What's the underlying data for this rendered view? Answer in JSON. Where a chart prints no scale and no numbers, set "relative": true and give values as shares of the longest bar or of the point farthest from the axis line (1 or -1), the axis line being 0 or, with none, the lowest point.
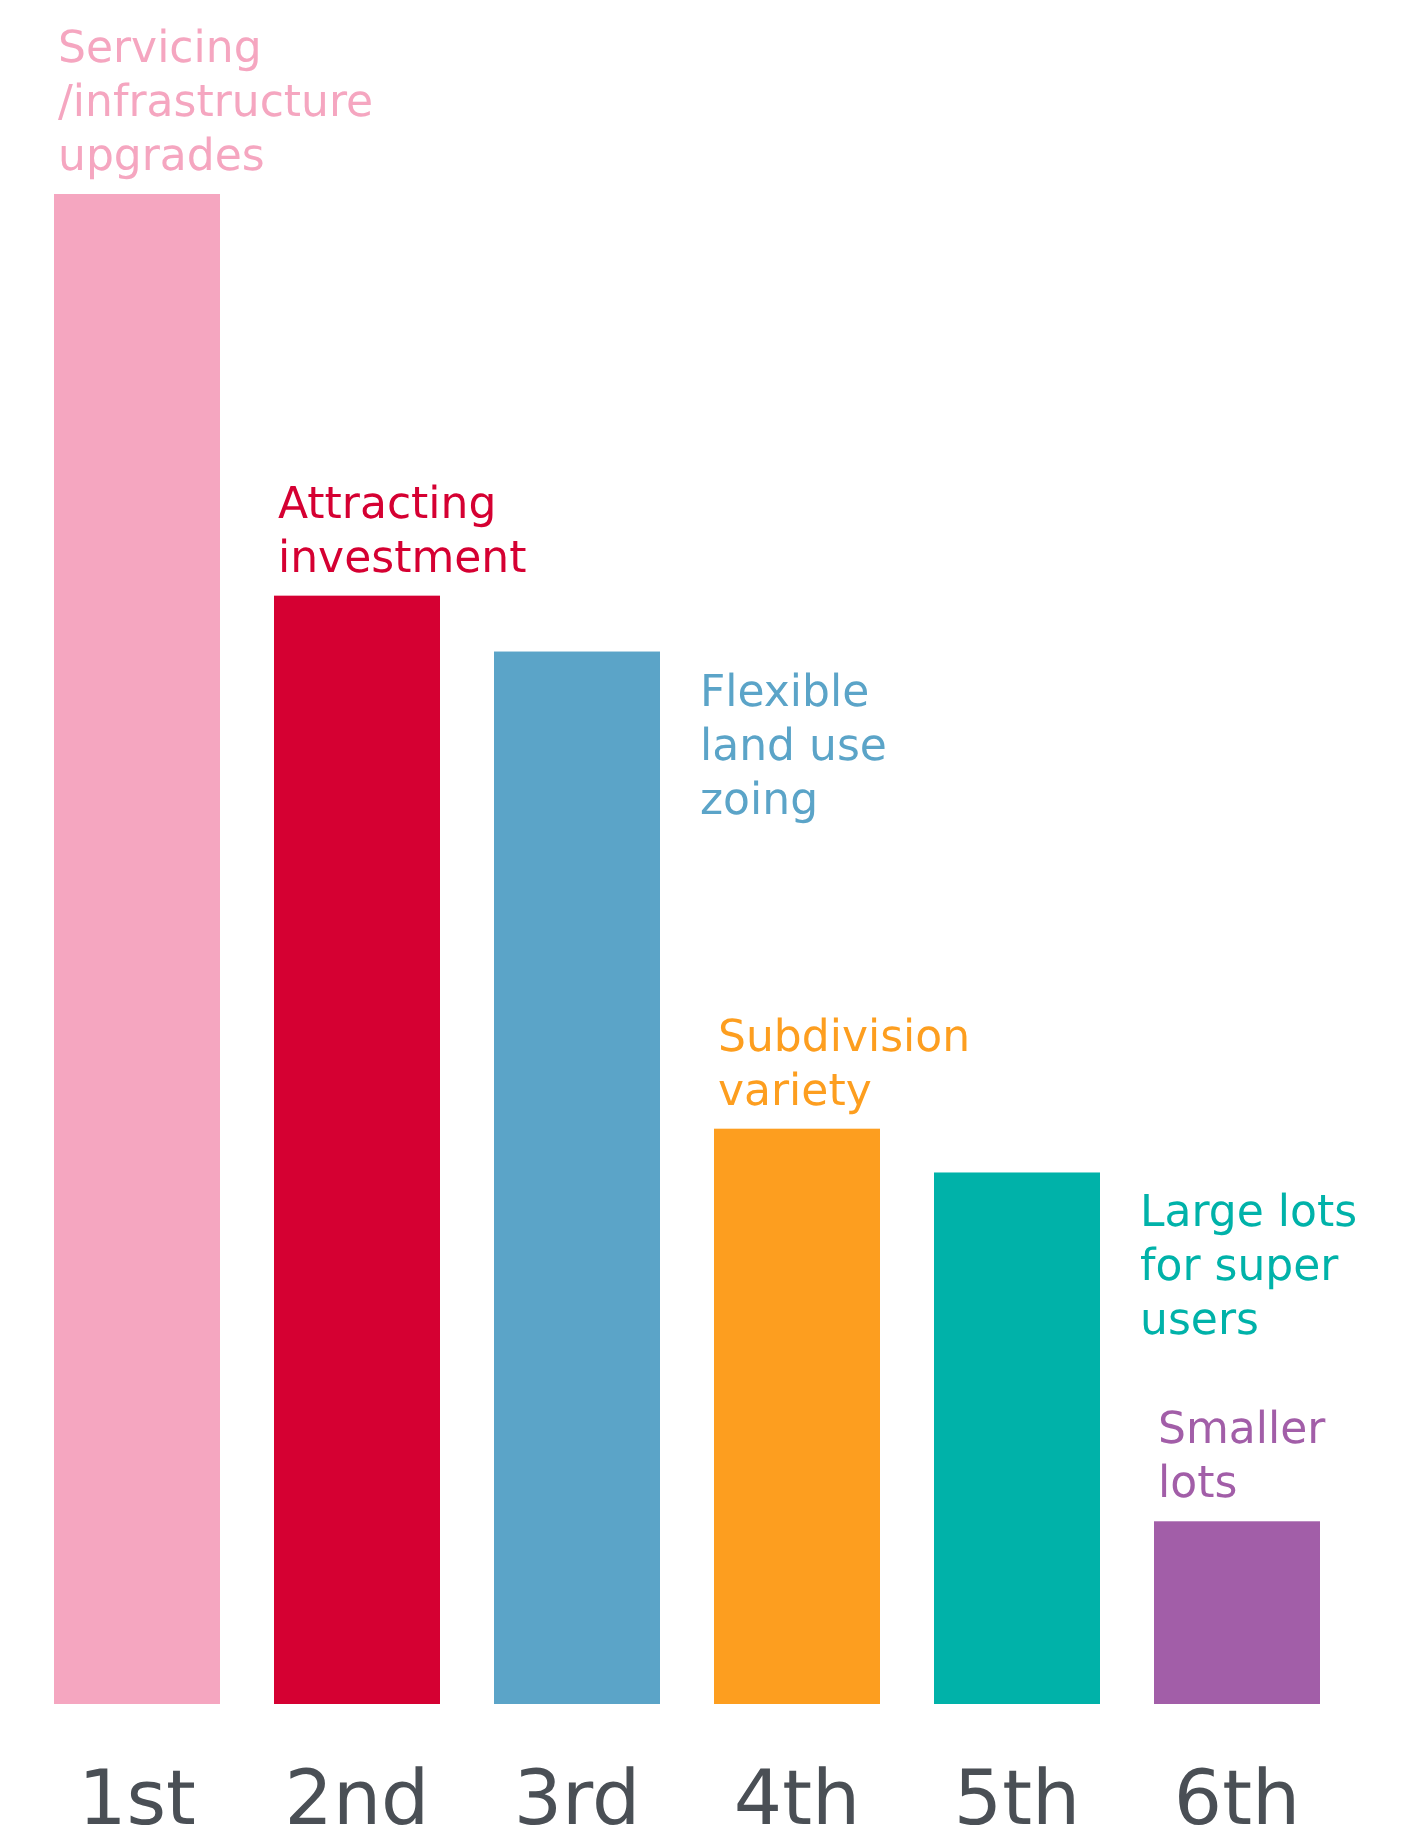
{
  "chart_data": {
    "type": "bar",
    "relative": true,
    "categories": [
      "1st",
      "2nd",
      "3rd",
      "4th",
      "5th",
      "6th"
    ],
    "values": [
      1,
      0.734,
      0.697,
      0.381,
      0.352,
      0.121
    ],
    "colors": [
      "#f5a6c0",
      "#d50032",
      "#5ba4c8",
      "#fd9e1f",
      "#00b2a9",
      "#a25ea8"
    ],
    "annotations": [
      {
        "text": "Servicing\n/infrastructure\nupgrades",
        "x": "1st",
        "y": 1
      },
      {
        "text": "Attracting\ninvestment",
        "x": "2nd",
        "y": 0.734
      },
      {
        "text": "Flexible\nland use\nzoing",
        "x": "3rd",
        "y": 0.697
      },
      {
        "text": "Subdivision\nvariety",
        "x": "4th",
        "y": 0.381
      },
      {
        "text": "Large lots\nfor super\nusers",
        "x": "5th",
        "y": 0.352
      },
      {
        "text": "Smaller\nlots",
        "x": "6th",
        "y": 0.121
      }
    ]
  }
}
